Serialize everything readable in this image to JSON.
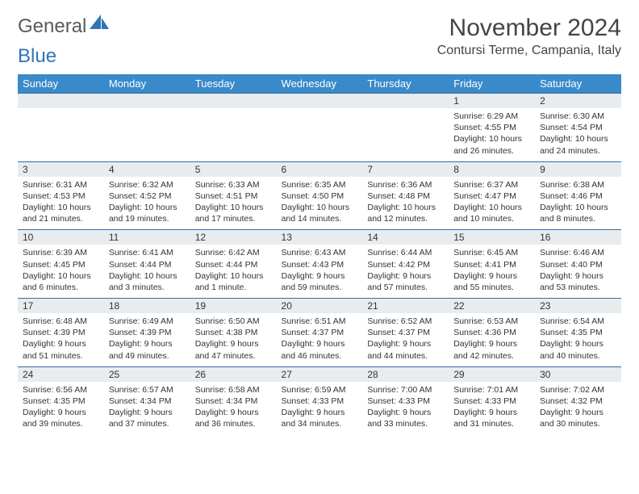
{
  "logo": {
    "word1": "General",
    "word2": "Blue",
    "color_text": "#555b60",
    "color_blue": "#2f75b5"
  },
  "title": "November 2024",
  "location": "Contursi Terme, Campania, Italy",
  "colors": {
    "header_bg": "#3a8ac9",
    "header_text": "#ffffff",
    "daynum_bg": "#e9ecef",
    "rule": "#2f6fa6",
    "body_text": "#333333",
    "page_bg": "#ffffff"
  },
  "typography": {
    "month_title_size_pt": 22,
    "location_size_pt": 12,
    "weekday_size_pt": 10,
    "daynum_size_pt": 9,
    "detail_size_pt": 8
  },
  "weekdays": [
    "Sunday",
    "Monday",
    "Tuesday",
    "Wednesday",
    "Thursday",
    "Friday",
    "Saturday"
  ],
  "weeks": [
    [
      null,
      null,
      null,
      null,
      null,
      {
        "n": "1",
        "sr": "Sunrise: 6:29 AM",
        "ss": "Sunset: 4:55 PM",
        "dl": "Daylight: 10 hours and 26 minutes."
      },
      {
        "n": "2",
        "sr": "Sunrise: 6:30 AM",
        "ss": "Sunset: 4:54 PM",
        "dl": "Daylight: 10 hours and 24 minutes."
      }
    ],
    [
      {
        "n": "3",
        "sr": "Sunrise: 6:31 AM",
        "ss": "Sunset: 4:53 PM",
        "dl": "Daylight: 10 hours and 21 minutes."
      },
      {
        "n": "4",
        "sr": "Sunrise: 6:32 AM",
        "ss": "Sunset: 4:52 PM",
        "dl": "Daylight: 10 hours and 19 minutes."
      },
      {
        "n": "5",
        "sr": "Sunrise: 6:33 AM",
        "ss": "Sunset: 4:51 PM",
        "dl": "Daylight: 10 hours and 17 minutes."
      },
      {
        "n": "6",
        "sr": "Sunrise: 6:35 AM",
        "ss": "Sunset: 4:50 PM",
        "dl": "Daylight: 10 hours and 14 minutes."
      },
      {
        "n": "7",
        "sr": "Sunrise: 6:36 AM",
        "ss": "Sunset: 4:48 PM",
        "dl": "Daylight: 10 hours and 12 minutes."
      },
      {
        "n": "8",
        "sr": "Sunrise: 6:37 AM",
        "ss": "Sunset: 4:47 PM",
        "dl": "Daylight: 10 hours and 10 minutes."
      },
      {
        "n": "9",
        "sr": "Sunrise: 6:38 AM",
        "ss": "Sunset: 4:46 PM",
        "dl": "Daylight: 10 hours and 8 minutes."
      }
    ],
    [
      {
        "n": "10",
        "sr": "Sunrise: 6:39 AM",
        "ss": "Sunset: 4:45 PM",
        "dl": "Daylight: 10 hours and 6 minutes."
      },
      {
        "n": "11",
        "sr": "Sunrise: 6:41 AM",
        "ss": "Sunset: 4:44 PM",
        "dl": "Daylight: 10 hours and 3 minutes."
      },
      {
        "n": "12",
        "sr": "Sunrise: 6:42 AM",
        "ss": "Sunset: 4:44 PM",
        "dl": "Daylight: 10 hours and 1 minute."
      },
      {
        "n": "13",
        "sr": "Sunrise: 6:43 AM",
        "ss": "Sunset: 4:43 PM",
        "dl": "Daylight: 9 hours and 59 minutes."
      },
      {
        "n": "14",
        "sr": "Sunrise: 6:44 AM",
        "ss": "Sunset: 4:42 PM",
        "dl": "Daylight: 9 hours and 57 minutes."
      },
      {
        "n": "15",
        "sr": "Sunrise: 6:45 AM",
        "ss": "Sunset: 4:41 PM",
        "dl": "Daylight: 9 hours and 55 minutes."
      },
      {
        "n": "16",
        "sr": "Sunrise: 6:46 AM",
        "ss": "Sunset: 4:40 PM",
        "dl": "Daylight: 9 hours and 53 minutes."
      }
    ],
    [
      {
        "n": "17",
        "sr": "Sunrise: 6:48 AM",
        "ss": "Sunset: 4:39 PM",
        "dl": "Daylight: 9 hours and 51 minutes."
      },
      {
        "n": "18",
        "sr": "Sunrise: 6:49 AM",
        "ss": "Sunset: 4:39 PM",
        "dl": "Daylight: 9 hours and 49 minutes."
      },
      {
        "n": "19",
        "sr": "Sunrise: 6:50 AM",
        "ss": "Sunset: 4:38 PM",
        "dl": "Daylight: 9 hours and 47 minutes."
      },
      {
        "n": "20",
        "sr": "Sunrise: 6:51 AM",
        "ss": "Sunset: 4:37 PM",
        "dl": "Daylight: 9 hours and 46 minutes."
      },
      {
        "n": "21",
        "sr": "Sunrise: 6:52 AM",
        "ss": "Sunset: 4:37 PM",
        "dl": "Daylight: 9 hours and 44 minutes."
      },
      {
        "n": "22",
        "sr": "Sunrise: 6:53 AM",
        "ss": "Sunset: 4:36 PM",
        "dl": "Daylight: 9 hours and 42 minutes."
      },
      {
        "n": "23",
        "sr": "Sunrise: 6:54 AM",
        "ss": "Sunset: 4:35 PM",
        "dl": "Daylight: 9 hours and 40 minutes."
      }
    ],
    [
      {
        "n": "24",
        "sr": "Sunrise: 6:56 AM",
        "ss": "Sunset: 4:35 PM",
        "dl": "Daylight: 9 hours and 39 minutes."
      },
      {
        "n": "25",
        "sr": "Sunrise: 6:57 AM",
        "ss": "Sunset: 4:34 PM",
        "dl": "Daylight: 9 hours and 37 minutes."
      },
      {
        "n": "26",
        "sr": "Sunrise: 6:58 AM",
        "ss": "Sunset: 4:34 PM",
        "dl": "Daylight: 9 hours and 36 minutes."
      },
      {
        "n": "27",
        "sr": "Sunrise: 6:59 AM",
        "ss": "Sunset: 4:33 PM",
        "dl": "Daylight: 9 hours and 34 minutes."
      },
      {
        "n": "28",
        "sr": "Sunrise: 7:00 AM",
        "ss": "Sunset: 4:33 PM",
        "dl": "Daylight: 9 hours and 33 minutes."
      },
      {
        "n": "29",
        "sr": "Sunrise: 7:01 AM",
        "ss": "Sunset: 4:33 PM",
        "dl": "Daylight: 9 hours and 31 minutes."
      },
      {
        "n": "30",
        "sr": "Sunrise: 7:02 AM",
        "ss": "Sunset: 4:32 PM",
        "dl": "Daylight: 9 hours and 30 minutes."
      }
    ]
  ]
}
